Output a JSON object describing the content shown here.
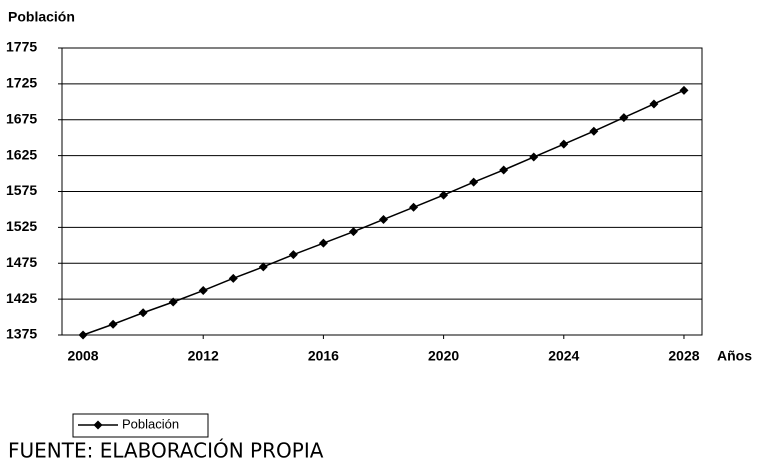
{
  "chart_data": {
    "type": "line",
    "ylabel": "Población",
    "xlabel": "Años",
    "x": [
      2008,
      2009,
      2010,
      2011,
      2012,
      2013,
      2014,
      2015,
      2016,
      2017,
      2018,
      2019,
      2020,
      2021,
      2022,
      2023,
      2024,
      2025,
      2026,
      2027,
      2028
    ],
    "series": [
      {
        "name": "Población",
        "color": "#000000",
        "values": [
          1375,
          1390,
          1406,
          1421,
          1437,
          1454,
          1470,
          1487,
          1503,
          1519,
          1536,
          1553,
          1570,
          1588,
          1605,
          1623,
          1641,
          1659,
          1678,
          1697,
          1716
        ]
      }
    ],
    "xlim": [
      2007.3,
      2028.6
    ],
    "xticks": [
      2008,
      2012,
      2016,
      2020,
      2024,
      2028
    ],
    "ylim": [
      1375,
      1775
    ],
    "yticks": [
      1375,
      1425,
      1475,
      1525,
      1575,
      1625,
      1675,
      1725,
      1775
    ],
    "grid": true,
    "legend": "bottom-left",
    "source": "FUENTE: ELABORACIÓN PROPIA"
  }
}
